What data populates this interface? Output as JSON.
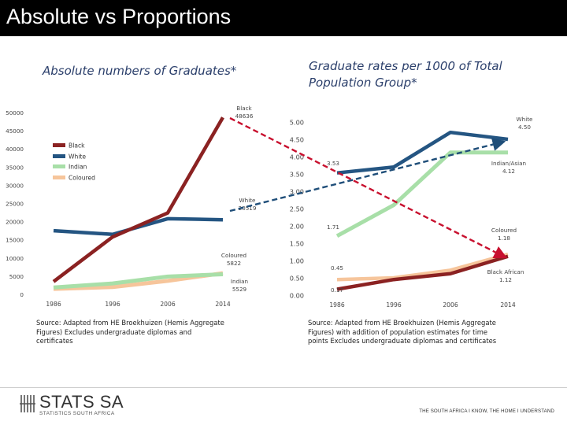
{
  "page_title": "Absolute vs Proportions",
  "left_subtitle": "Absolute numbers of Graduates*",
  "right_subtitle": "Graduate rates per 1000 of Total Population Group*",
  "left_source": "Source: Adapted from HE Broekhuizen (Hemis Aggregate Figures) Excludes undergraduate diplomas and certificates",
  "right_source": "Source: Adapted from HE Broekhuizen (Hemis Aggregate Figures) with addition of population estimates for time points Excludes undergraduate diplomas and certificates",
  "logo": {
    "name": "STATS SA",
    "subtitle": "STATISTICS SOUTH AFRICA"
  },
  "tagline": "THE SOUTH AFRICA I KNOW, THE HOME I UNDERSTAND",
  "colors": {
    "header_bg": "#000000",
    "black": "#8b2222",
    "white": "#245582",
    "indian": "#a8dfa8",
    "coloured": "#f6c59b",
    "arrow": "#c8102e",
    "arrow_dark": "#1f4e79"
  },
  "chart_data": [
    {
      "type": "line",
      "categories": [
        "1986",
        "1996",
        "2006",
        "2014"
      ],
      "ylim": [
        0,
        50000
      ],
      "yticks": [
        "0",
        "5000",
        "10000",
        "15000",
        "20000",
        "25000",
        "30000",
        "35000",
        "40000",
        "45000",
        "50000"
      ],
      "grid": false,
      "legend": {
        "placement": "top-left",
        "entries": [
          "Black",
          "White",
          "Indian",
          "Coloured"
        ]
      },
      "series": [
        {
          "name": "Black",
          "color": "#8b2222",
          "values": [
            3500,
            15800,
            22400,
            48636
          ]
        },
        {
          "name": "White",
          "color": "#245582",
          "values": [
            17500,
            16500,
            20800,
            20519
          ]
        },
        {
          "name": "Indian",
          "color": "#a8dfa8",
          "values": [
            1900,
            3000,
            4900,
            5529
          ]
        },
        {
          "name": "Coloured",
          "color": "#f6c59b",
          "values": [
            1500,
            2000,
            3700,
            5822
          ]
        }
      ],
      "annotations": [
        {
          "lines": [
            "Black",
            "48636"
          ]
        },
        {
          "lines": [
            "White",
            "20519"
          ]
        },
        {
          "lines": [
            "Coloured",
            "5822"
          ]
        },
        {
          "lines": [
            "Indian",
            "5529"
          ]
        }
      ]
    },
    {
      "type": "line",
      "categories": [
        "1986",
        "1996",
        "2006",
        "2014"
      ],
      "ylim": [
        0,
        5.0
      ],
      "yticks": [
        "0.00",
        "0.50",
        "1.00",
        "1.50",
        "2.00",
        "2.50",
        "3.00",
        "3.50",
        "4.00",
        "4.50",
        "5.00"
      ],
      "grid": false,
      "series": [
        {
          "name": "Black African",
          "color": "#8b2222",
          "values": [
            0.17,
            0.45,
            0.62,
            1.12
          ]
        },
        {
          "name": "White",
          "color": "#245582",
          "values": [
            3.53,
            3.7,
            4.7,
            4.5
          ]
        },
        {
          "name": "Indian/Asian",
          "color": "#a8dfa8",
          "values": [
            1.71,
            2.6,
            4.12,
            4.12
          ]
        },
        {
          "name": "Coloured",
          "color": "#f6c59b",
          "values": [
            0.45,
            0.5,
            0.72,
            1.18
          ]
        }
      ],
      "annotations": [
        {
          "lines": [
            "White",
            "4.50"
          ]
        },
        {
          "lines": [
            "3.53"
          ]
        },
        {
          "lines": [
            "Indian/Asian",
            "4.12"
          ]
        },
        {
          "lines": [
            "1.71"
          ]
        },
        {
          "lines": [
            "Coloured",
            "1.18"
          ]
        },
        {
          "lines": [
            "0.45"
          ]
        },
        {
          "lines": [
            "Black African",
            "1.12"
          ]
        },
        {
          "lines": [
            "0.17"
          ]
        }
      ]
    }
  ]
}
